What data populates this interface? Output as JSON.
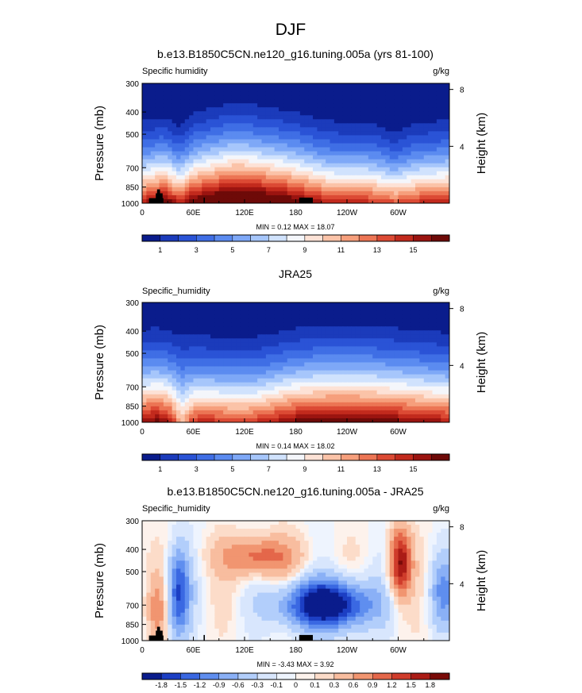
{
  "page": {
    "season": "DJF"
  },
  "colors": {
    "seq": [
      "#0a1c8c",
      "#1b3bbb",
      "#2a53d6",
      "#3f6ee5",
      "#5b8bf0",
      "#7ea8f7",
      "#a6c6fb",
      "#d0e2fd",
      "#f4f6fb",
      "#fde2d6",
      "#fbc3a8",
      "#f69f7c",
      "#ec7554",
      "#dc4a34",
      "#c22a1d",
      "#9b1410",
      "#6e0a08"
    ],
    "div": [
      "#0a1c8c",
      "#1c3fc4",
      "#3a68e2",
      "#5f8eef",
      "#8ab0f6",
      "#b2cefb",
      "#d8e6fd",
      "#eef4fe",
      "#fdf2ec",
      "#fcdcc9",
      "#f8bd9f",
      "#f19570",
      "#e4674a",
      "#cf3c2b",
      "#ab1c16",
      "#7a0b08"
    ]
  },
  "chart_data": [
    {
      "type": "heatmap",
      "panel": "model",
      "title": "b.e13.B1850C5CN.ne120_g16.tuning.005a (yrs 81-100)",
      "left_label": "Specific humidity",
      "units": "g/kg",
      "xlabel": "",
      "ylabel": "Pressure (mb)",
      "ylabel_right": "Height (km)",
      "x_ticks": [
        "0",
        "60E",
        "120E",
        "180",
        "120W",
        "60W"
      ],
      "x_tick_values": [
        0,
        60,
        120,
        180,
        240,
        300
      ],
      "xlim": [
        0,
        360
      ],
      "y_ticks": [
        "300",
        "400",
        "500",
        "700",
        "850",
        "1000"
      ],
      "y_tick_values": [
        300,
        400,
        500,
        700,
        850,
        1000
      ],
      "ylim": [
        1000,
        300
      ],
      "height_ticks": [
        "8",
        "4"
      ],
      "height_tick_values": [
        8,
        4
      ],
      "minmax": "MIN =  0.12  MAX =  18.07",
      "colorbar_labels": [
        "1",
        "3",
        "5",
        "7",
        "9",
        "11",
        "13",
        "15"
      ],
      "levels": [
        1,
        2,
        3,
        4,
        5,
        6,
        7,
        8,
        9,
        10,
        11,
        12,
        13,
        14,
        15,
        16
      ],
      "min": 0.12,
      "max": 18.07,
      "has_terrain": true
    },
    {
      "type": "heatmap",
      "panel": "obs",
      "title": "JRA25",
      "left_label": "Specific_humidity",
      "units": "g/kg",
      "xlabel": "",
      "ylabel": "Pressure (mb)",
      "ylabel_right": "Height (km)",
      "x_ticks": [
        "0",
        "60E",
        "120E",
        "180",
        "120W",
        "60W"
      ],
      "x_tick_values": [
        0,
        60,
        120,
        180,
        240,
        300
      ],
      "xlim": [
        0,
        360
      ],
      "y_ticks": [
        "300",
        "400",
        "500",
        "700",
        "850",
        "1000"
      ],
      "y_tick_values": [
        300,
        400,
        500,
        700,
        850,
        1000
      ],
      "ylim": [
        1000,
        300
      ],
      "height_ticks": [
        "8",
        "4"
      ],
      "height_tick_values": [
        8,
        4
      ],
      "minmax": "MIN =  0.14  MAX =  18.02",
      "colorbar_labels": [
        "1",
        "3",
        "5",
        "7",
        "9",
        "11",
        "13",
        "15"
      ],
      "levels": [
        1,
        2,
        3,
        4,
        5,
        6,
        7,
        8,
        9,
        10,
        11,
        12,
        13,
        14,
        15,
        16
      ],
      "min": 0.14,
      "max": 18.02,
      "has_terrain": false
    },
    {
      "type": "heatmap",
      "panel": "diff",
      "title": "b.e13.B1850C5CN.ne120_g16.tuning.005a - JRA25",
      "left_label": "Specific_humidity",
      "units": "g/kg",
      "xlabel": "",
      "ylabel": "Pressure (mb)",
      "ylabel_right": "Height (km)",
      "x_ticks": [
        "0",
        "60E",
        "120E",
        "180",
        "120W",
        "60W"
      ],
      "x_tick_values": [
        0,
        60,
        120,
        180,
        240,
        300
      ],
      "xlim": [
        0,
        360
      ],
      "y_ticks": [
        "300",
        "400",
        "500",
        "700",
        "850",
        "1000"
      ],
      "y_tick_values": [
        300,
        400,
        500,
        700,
        850,
        1000
      ],
      "ylim": [
        1000,
        300
      ],
      "height_ticks": [
        "8",
        "4"
      ],
      "height_tick_values": [
        8,
        4
      ],
      "minmax": "MIN = -3.43  MAX =  3.92",
      "colorbar_labels": [
        "-1.8",
        "-1.5",
        "-1.2",
        "-0.9",
        "-0.6",
        "-0.3",
        "-0.1",
        "0",
        "0.1",
        "0.3",
        "0.6",
        "0.9",
        "1.2",
        "1.5",
        "1.8"
      ],
      "levels": [
        -1.8,
        -1.5,
        -1.2,
        -0.9,
        -0.6,
        -0.3,
        -0.1,
        0,
        0.1,
        0.3,
        0.6,
        0.9,
        1.2,
        1.5,
        1.8
      ],
      "min": -3.43,
      "max": 3.92,
      "has_terrain": true
    }
  ]
}
